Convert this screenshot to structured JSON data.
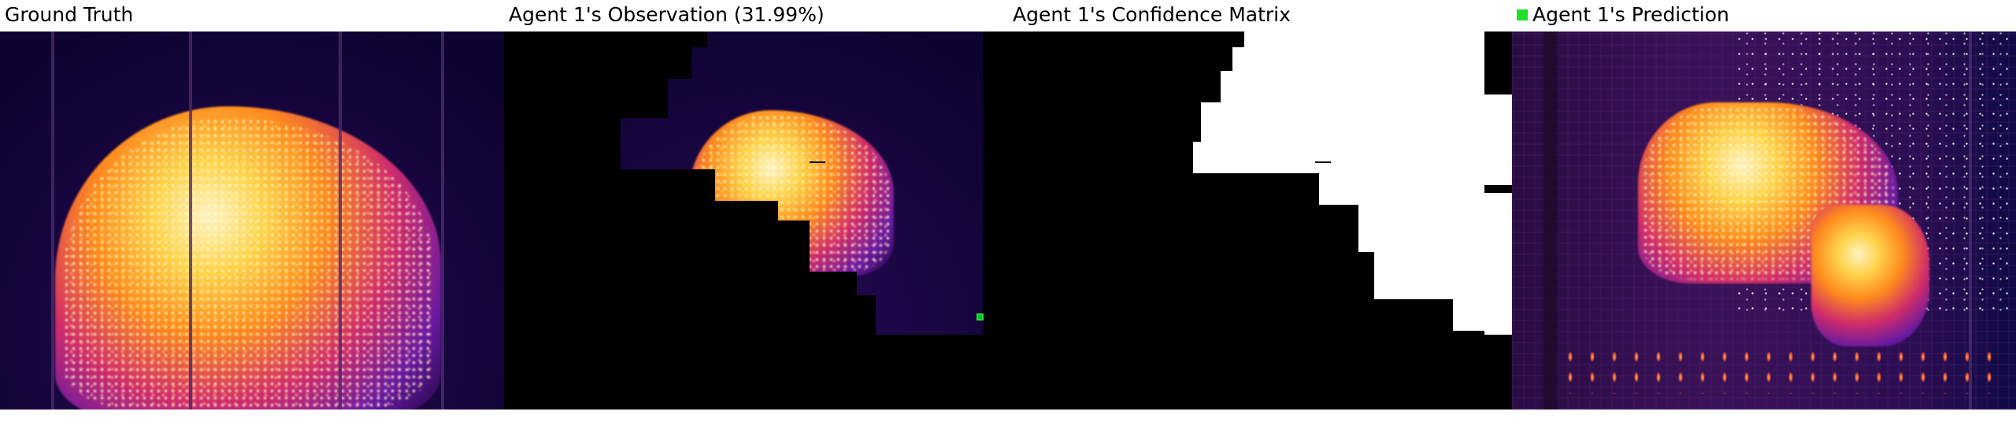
{
  "panels": {
    "ground_truth": {
      "title": "Ground Truth"
    },
    "observation": {
      "title": "Agent 1's Observation (31.99%)"
    },
    "confidence": {
      "title": "Agent 1's Confidence Matrix"
    },
    "prediction": {
      "title": "Agent 1's Prediction"
    }
  },
  "legend": {
    "color": "#22e02a"
  },
  "colors": {
    "background": "#ffffff",
    "masked": "#000000",
    "confident": "#ffffff",
    "fire_hot": "#ffd24a",
    "fire_mid": "#ff8a1e",
    "thermal_cold": "#1a0642"
  }
}
